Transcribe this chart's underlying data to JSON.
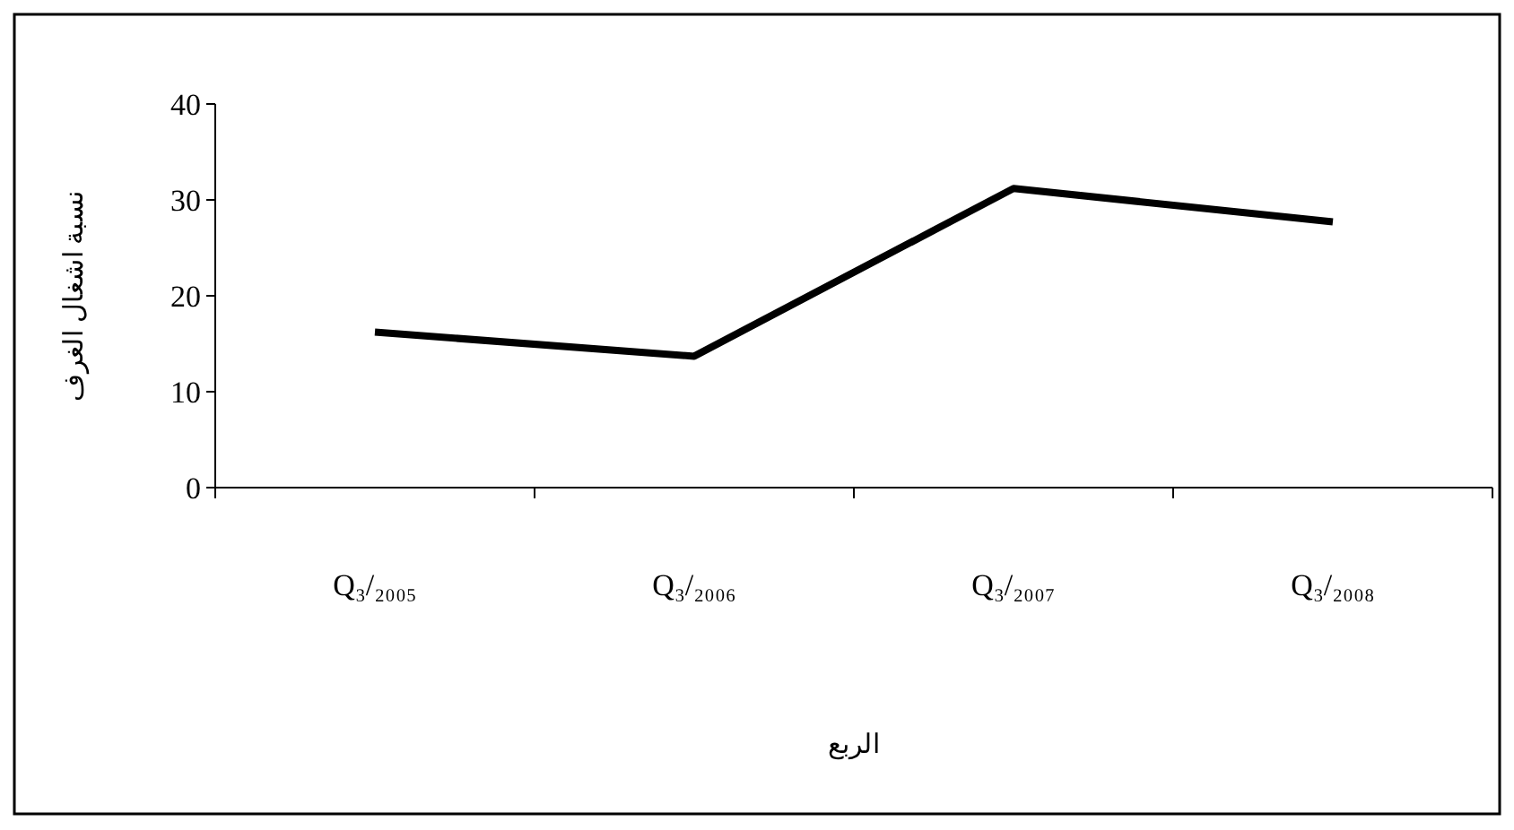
{
  "chart_data": {
    "type": "line",
    "xlabel": "الربع",
    "ylabel": "نسبة اشغال الغرف",
    "categories": [
      "Q₃/₂₀₀₅",
      "Q₃/₂₀₀₆",
      "Q₃/₂₀₀₇",
      "Q₃/₂₀₀₈"
    ],
    "series": [
      {
        "color": "#000000",
        "values": [
          16.2,
          13.7,
          31.2,
          27.7
        ]
      }
    ],
    "ylim": [
      0,
      40
    ],
    "yticks": [
      0,
      10,
      20,
      30,
      40
    ]
  }
}
